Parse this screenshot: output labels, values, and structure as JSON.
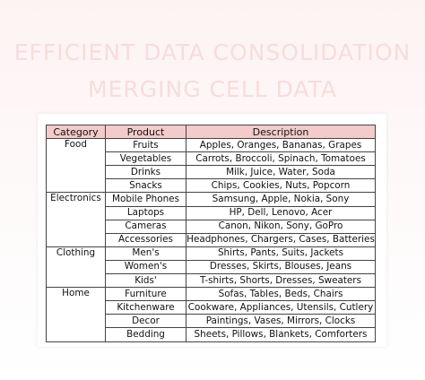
{
  "title": {
    "line1": "EFFICIENT DATA CONSOLIDATION",
    "line2": "MERGING CELL DATA"
  },
  "table": {
    "headers": [
      "Category",
      "Product",
      "Description"
    ],
    "groups": [
      {
        "category": "Food",
        "rows": [
          {
            "product": "Fruits",
            "description": "Apples, Oranges, Bananas, Grapes"
          },
          {
            "product": "Vegetables",
            "description": "Carrots, Broccoli, Spinach, Tomatoes"
          },
          {
            "product": "Drinks",
            "description": "Milk, Juice, Water, Soda"
          },
          {
            "product": "Snacks",
            "description": "Chips, Cookies, Nuts, Popcorn"
          }
        ]
      },
      {
        "category": "Electronics",
        "rows": [
          {
            "product": "Mobile Phones",
            "description": "Samsung, Apple, Nokia, Sony"
          },
          {
            "product": "Laptops",
            "description": "HP, Dell, Lenovo, Acer"
          },
          {
            "product": "Cameras",
            "description": "Canon, Nikon, Sony, GoPro"
          },
          {
            "product": "Accessories",
            "description": "Headphones, Chargers, Cases, Batteries"
          }
        ]
      },
      {
        "category": "Clothing",
        "rows": [
          {
            "product": "Men's",
            "description": "Shirts, Pants, Suits, Jackets"
          },
          {
            "product": "Women's",
            "description": "Dresses, Skirts, Blouses, Jeans"
          },
          {
            "product": "Kids'",
            "description": "T-shirts, Shorts, Dresses, Sweaters"
          }
        ]
      },
      {
        "category": "Home",
        "rows": [
          {
            "product": "Furniture",
            "description": "Sofas, Tables, Beds, Chairs"
          },
          {
            "product": "Kitchenware",
            "description": "Cookware, Appliances, Utensils, Cutlery"
          },
          {
            "product": "Decor",
            "description": "Paintings, Vases, Mirrors, Clocks"
          },
          {
            "product": "Bedding",
            "description": "Sheets, Pillows, Blankets, Comforters"
          }
        ]
      }
    ]
  }
}
